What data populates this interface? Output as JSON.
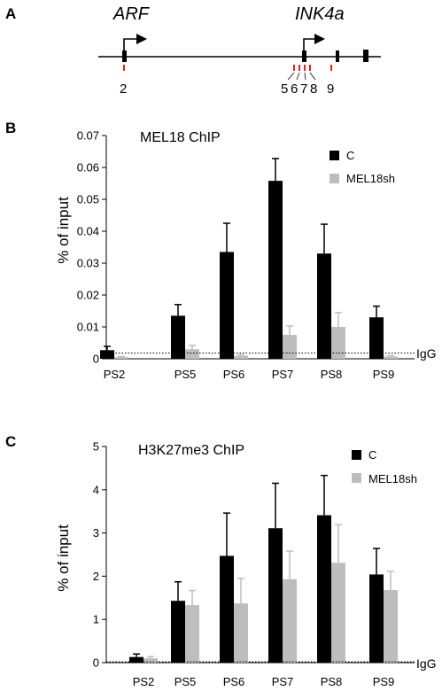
{
  "panel_a": {
    "letter": "A",
    "gene1": "ARF",
    "gene2": "INK4a",
    "site_labels": [
      "2",
      "5",
      "6",
      "7",
      "8",
      "9"
    ],
    "site_color": "#d9261c"
  },
  "chart_data": [
    {
      "panel": "B",
      "type": "bar",
      "title": "MEL18 ChIP",
      "ylabel": "%  of input",
      "xlabel": "",
      "ylim": [
        0,
        0.07
      ],
      "yticks": [
        "0",
        "0.01",
        "0.02",
        "0.03",
        "0.04",
        "0.05",
        "0.06",
        "0.07"
      ],
      "categories": [
        "PS2",
        "PS5",
        "PS6",
        "PS7",
        "PS8",
        "PS9"
      ],
      "series": [
        {
          "name": "C",
          "color": "#000000",
          "values": [
            0.0027,
            0.0135,
            0.0335,
            0.0558,
            0.033,
            0.013
          ],
          "errors": [
            0.0012,
            0.0035,
            0.009,
            0.007,
            0.0092,
            0.0035
          ]
        },
        {
          "name": "MEL18sh",
          "color": "#bdbdbd",
          "values": [
            0.0005,
            0.003,
            0.001,
            0.0075,
            0.01,
            0.0007
          ],
          "errors": [
            0.0002,
            0.0012,
            0.0003,
            0.0028,
            0.0045,
            0.0003
          ]
        }
      ],
      "reference_line": {
        "label": "IgG",
        "value": 0.0018,
        "style": "dotted"
      }
    },
    {
      "panel": "C",
      "type": "bar",
      "title": "H3K27me3 ChIP",
      "ylabel": "%  of input",
      "xlabel": "",
      "ylim": [
        0,
        5
      ],
      "yticks": [
        "0",
        "1",
        "2",
        "3",
        "4",
        "5"
      ],
      "categories": [
        "PS2",
        "PS5",
        "PS6",
        "PS7",
        "PS8",
        "PS9"
      ],
      "series": [
        {
          "name": "C",
          "color": "#000000",
          "values": [
            0.13,
            1.43,
            2.47,
            3.11,
            3.41,
            2.04
          ],
          "errors": [
            0.07,
            0.44,
            0.99,
            1.04,
            0.92,
            0.6
          ]
        },
        {
          "name": "MEL18sh",
          "color": "#bdbdbd",
          "values": [
            0.1,
            1.33,
            1.37,
            1.93,
            2.31,
            1.68
          ],
          "errors": [
            0.04,
            0.34,
            0.58,
            0.65,
            0.88,
            0.43
          ]
        }
      ],
      "reference_line": {
        "label": "IgG",
        "value": 0.02,
        "style": "dotted"
      }
    }
  ]
}
